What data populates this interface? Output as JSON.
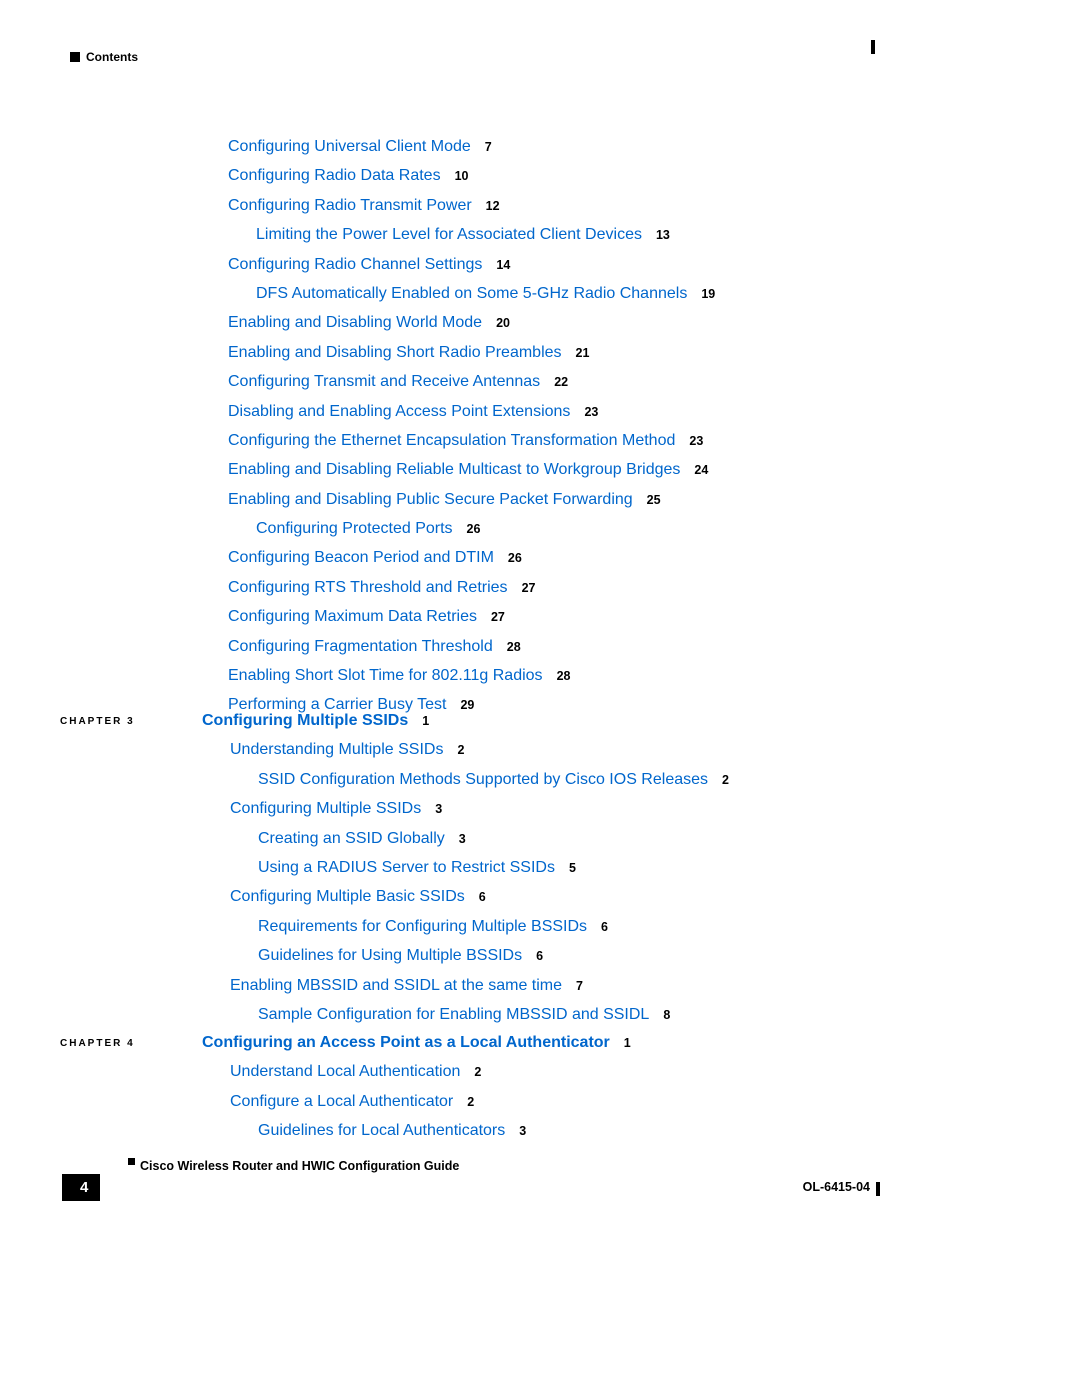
{
  "header": {
    "label": "Contents"
  },
  "section1": {
    "items": [
      {
        "text": "Configuring Universal Client Mode",
        "page": "7",
        "indent": 0
      },
      {
        "text": "Configuring Radio Data Rates",
        "page": "10",
        "indent": 0
      },
      {
        "text": "Configuring Radio Transmit Power",
        "page": "12",
        "indent": 0
      },
      {
        "text": "Limiting the Power Level for Associated Client Devices",
        "page": "13",
        "indent": 1
      },
      {
        "text": "Configuring Radio Channel Settings",
        "page": "14",
        "indent": 0
      },
      {
        "text": "DFS Automatically Enabled on Some 5-GHz Radio Channels",
        "page": "19",
        "indent": 1
      },
      {
        "text": "Enabling and Disabling World Mode",
        "page": "20",
        "indent": 0
      },
      {
        "text": "Enabling and Disabling Short Radio Preambles",
        "page": "21",
        "indent": 0
      },
      {
        "text": "Configuring Transmit and Receive Antennas",
        "page": "22",
        "indent": 0
      },
      {
        "text": "Disabling and Enabling Access Point Extensions",
        "page": "23",
        "indent": 0
      },
      {
        "text": "Configuring the Ethernet Encapsulation Transformation Method",
        "page": "23",
        "indent": 0
      },
      {
        "text": "Enabling and Disabling Reliable Multicast to Workgroup Bridges",
        "page": "24",
        "indent": 0
      },
      {
        "text": "Enabling and Disabling Public Secure Packet Forwarding",
        "page": "25",
        "indent": 0
      },
      {
        "text": "Configuring Protected Ports",
        "page": "26",
        "indent": 1
      },
      {
        "text": "Configuring Beacon Period and DTIM",
        "page": "26",
        "indent": 0
      },
      {
        "text": "Configuring RTS Threshold and Retries",
        "page": "27",
        "indent": 0
      },
      {
        "text": "Configuring Maximum Data Retries",
        "page": "27",
        "indent": 0
      },
      {
        "text": "Configuring Fragmentation Threshold",
        "page": "28",
        "indent": 0
      },
      {
        "text": "Enabling Short Slot Time for 802.11g Radios",
        "page": "28",
        "indent": 0
      },
      {
        "text": "Performing a Carrier Busy Test",
        "page": "29",
        "indent": 0
      }
    ]
  },
  "chapter3": {
    "label": "CHAPTER 3",
    "title": "Configuring Multiple SSIDs",
    "title_page": "1",
    "items": [
      {
        "text": "Understanding Multiple SSIDs",
        "page": "2",
        "indent": 0
      },
      {
        "text": "SSID Configuration Methods Supported by Cisco IOS Releases",
        "page": "2",
        "indent": 1
      },
      {
        "text": "Configuring Multiple SSIDs",
        "page": "3",
        "indent": 0
      },
      {
        "text": "Creating an SSID Globally",
        "page": "3",
        "indent": 1
      },
      {
        "text": "Using a RADIUS Server to Restrict SSIDs",
        "page": "5",
        "indent": 1
      },
      {
        "text": "Configuring Multiple Basic SSIDs",
        "page": "6",
        "indent": 0
      },
      {
        "text": "Requirements for Configuring Multiple BSSIDs",
        "page": "6",
        "indent": 1
      },
      {
        "text": "Guidelines for Using Multiple BSSIDs",
        "page": "6",
        "indent": 1
      },
      {
        "text": "Enabling MBSSID and SSIDL at the same time",
        "page": "7",
        "indent": 0
      },
      {
        "text": "Sample Configuration for Enabling MBSSID and SSIDL",
        "page": "8",
        "indent": 1
      }
    ]
  },
  "chapter4": {
    "label": "CHAPTER 4",
    "title": "Configuring an Access Point as a Local Authenticator",
    "title_page": "1",
    "items": [
      {
        "text": "Understand Local Authentication",
        "page": "2",
        "indent": 0
      },
      {
        "text": "Configure a Local Authenticator",
        "page": "2",
        "indent": 0
      },
      {
        "text": "Guidelines for Local Authenticators",
        "page": "3",
        "indent": 1
      }
    ]
  },
  "footer": {
    "title": "Cisco Wireless Router and HWIC Configuration Guide",
    "page_number": "4",
    "doc_id": "OL-6415-04"
  }
}
